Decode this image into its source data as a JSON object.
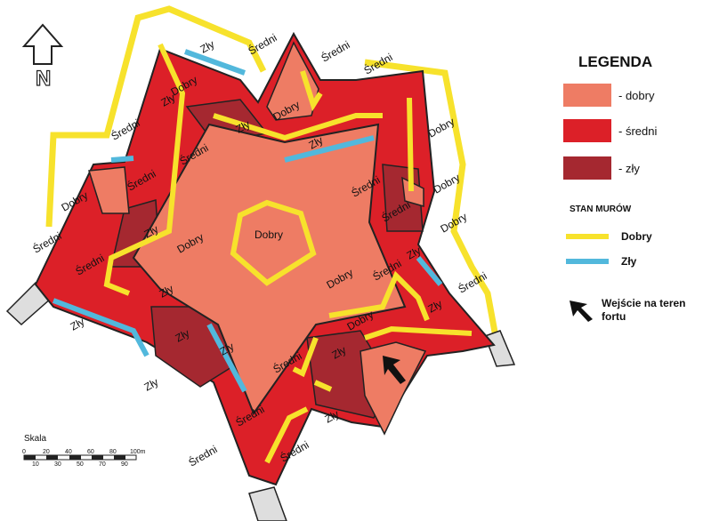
{
  "legend": {
    "title": "LEGENDA",
    "items": [
      {
        "label": "- dobry",
        "color": "#ee7c64"
      },
      {
        "label": "- średni",
        "color": "#dc2028"
      },
      {
        "label": "- zły",
        "color": "#a52830"
      }
    ],
    "walls_title": "STAN MURÓW",
    "walls": [
      {
        "label": "Dobry",
        "color": "#f7e22c"
      },
      {
        "label": "Zły",
        "color": "#52b8dc"
      }
    ],
    "entry_label_line1": "Wejście na teren",
    "entry_label_line2": "fortu"
  },
  "north_letter": "N",
  "map_labels": {
    "zly": "Zły",
    "sredni": "Średni",
    "dobry": "Dobry"
  },
  "scale": {
    "title": "Skala",
    "top_ticks": [
      "0",
      "20",
      "40",
      "60",
      "80",
      "100m"
    ],
    "bottom_ticks": [
      "10",
      "30",
      "50",
      "70",
      "90"
    ]
  }
}
